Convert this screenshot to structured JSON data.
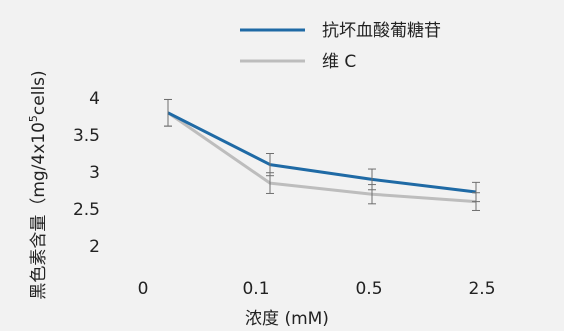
{
  "chart_data": {
    "type": "line",
    "categories": [
      "0",
      "0.1",
      "0.5",
      "2.5"
    ],
    "xlabel": "浓度 (mM)",
    "ylabel": {
      "main": "黑色素含量（mg/4x10",
      "sup": "5",
      "tail": "cells)"
    },
    "ylim": [
      2,
      4
    ],
    "yticks": [
      "2",
      "2.5",
      "3",
      "3.5",
      "4"
    ],
    "grid": false,
    "legend_position": "top",
    "series": [
      {
        "name": "抗坏血酸葡糖苷",
        "color": "#1f6aa5",
        "values": [
          3.8,
          3.1,
          2.9,
          2.73
        ],
        "err": [
          0.18,
          0.15,
          0.14,
          0.13
        ]
      },
      {
        "name": "维 C",
        "color": "#bdbdbd",
        "values": [
          3.8,
          2.85,
          2.7,
          2.6
        ],
        "err": [
          0.18,
          0.14,
          0.13,
          0.12
        ]
      }
    ],
    "errorbar_color": "#6f6f6f"
  }
}
